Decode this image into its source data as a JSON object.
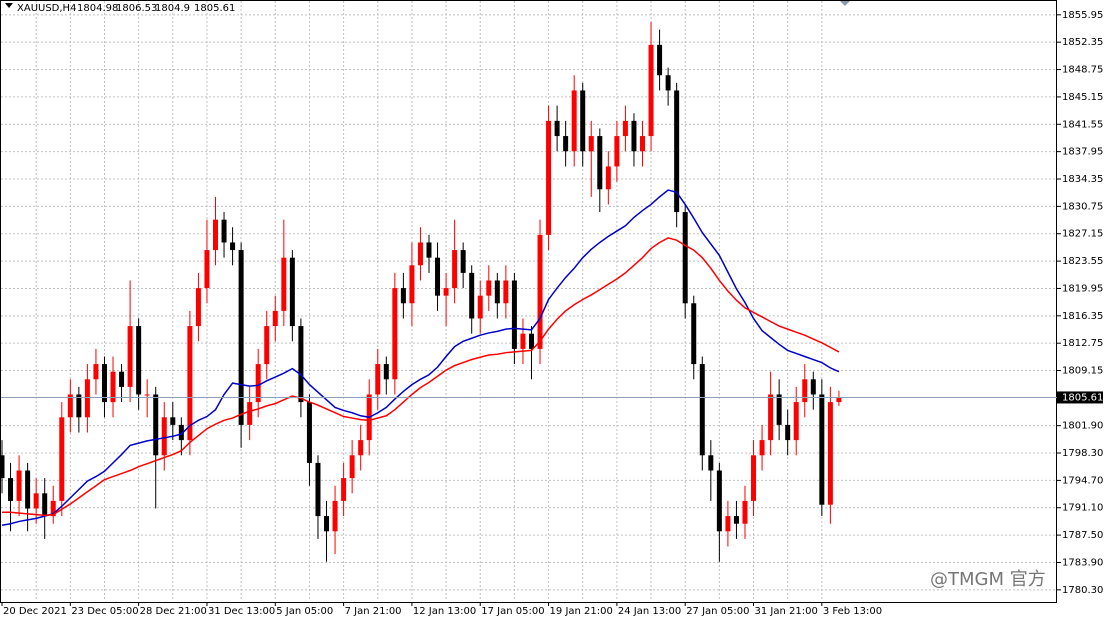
{
  "chart_data": {
    "type": "candlestick",
    "title": "XAUUSD,H4",
    "header_values": [
      1804.98,
      1806.53,
      1804.9,
      1805.61
    ],
    "categories": [
      "20 Dec 2021",
      null,
      null,
      null,
      null,
      null,
      null,
      null,
      "23 Dec 05:00",
      null,
      null,
      null,
      null,
      null,
      null,
      null,
      "28 Dec 21:00",
      null,
      null,
      null,
      null,
      null,
      null,
      null,
      "31 Dec 13:00",
      null,
      null,
      null,
      null,
      null,
      null,
      null,
      "5 Jan 05:00",
      null,
      null,
      null,
      null,
      null,
      null,
      null,
      "7 Jan 21:00",
      null,
      null,
      null,
      null,
      null,
      null,
      null,
      "12 Jan 13:00",
      null,
      null,
      null,
      null,
      null,
      null,
      null,
      "17 Jan 05:00",
      null,
      null,
      null,
      null,
      null,
      null,
      null,
      "19 Jan 21:00",
      null,
      null,
      null,
      null,
      null,
      null,
      null,
      "24 Jan 13:00",
      null,
      null,
      null,
      null,
      null,
      null,
      null,
      "27 Jan 05:00",
      null,
      null,
      null,
      null,
      null,
      null,
      null,
      "31 Jan 21:00",
      null,
      null,
      null,
      null,
      null,
      null,
      null,
      "3 Feb 13:00",
      null,
      null
    ],
    "open": [
      1798,
      1795,
      1792,
      1796,
      1791,
      1793,
      1790,
      1792,
      1803,
      1806,
      1803,
      1808,
      1810,
      1805,
      1809,
      1807,
      1815,
      1806,
      1806,
      1798,
      1803,
      1802,
      1800,
      1815,
      1820,
      1825,
      1829,
      1826,
      1825,
      1802,
      1805,
      1810,
      1815,
      1817,
      1824,
      1815,
      1805,
      1797,
      1790,
      1788,
      1792,
      1795,
      1798,
      1800,
      1806,
      1810,
      1808,
      1820,
      1818,
      1823,
      1826,
      1824,
      1819,
      1820,
      1825,
      1822,
      1816,
      1819,
      1821,
      1818,
      1821,
      1812,
      1814,
      1812,
      1827,
      1842,
      1840,
      1838,
      1846,
      1838,
      1840,
      1833,
      1836,
      1840,
      1842,
      1838,
      1840,
      1852,
      1848,
      1846,
      1830,
      1818,
      1810,
      1798,
      1796,
      1788,
      1790,
      1789,
      1792,
      1798,
      1800,
      1806,
      1802,
      1800,
      1805,
      1808,
      1806,
      1791.5,
      1805
    ],
    "high": [
      1800,
      1797,
      1798,
      1797,
      1795,
      1795,
      1794,
      1805,
      1808,
      1807,
      1810,
      1812,
      1811,
      1811,
      1810,
      1821,
      1816,
      1808,
      1807,
      1805,
      1805,
      1803,
      1817,
      1822,
      1829,
      1832,
      1830,
      1828,
      1826,
      1807,
      1812,
      1817,
      1819,
      1829,
      1825,
      1816,
      1806,
      1798,
      1792,
      1794,
      1797,
      1800,
      1802,
      1808,
      1812,
      1811,
      1822,
      1822,
      1826,
      1828,
      1827,
      1826,
      1822,
      1829,
      1826,
      1823,
      1821,
      1823,
      1822,
      1823,
      1822,
      1816,
      1815,
      1829,
      1844,
      1844,
      1842,
      1848,
      1847,
      1842,
      1841,
      1838,
      1842,
      1844,
      1843,
      1842,
      1855,
      1854,
      1849,
      1847,
      1831,
      1819,
      1811,
      1800,
      1797,
      1792,
      1792,
      1794,
      1800,
      1802,
      1809,
      1808,
      1804,
      1807,
      1810,
      1809,
      1808,
      1807,
      1806.5
    ],
    "low": [
      1793,
      1788,
      1790,
      1788,
      1789,
      1787,
      1789,
      1790,
      1801,
      1801,
      1801,
      1806,
      1803,
      1803,
      1805,
      1805,
      1804,
      1803,
      1791,
      1796,
      1800,
      1798,
      1798,
      1813,
      1818,
      1823,
      1824,
      1823,
      1799,
      1800,
      1803,
      1808,
      1813,
      1815,
      1813,
      1803,
      1794,
      1787,
      1784,
      1785,
      1790,
      1793,
      1796,
      1798,
      1804,
      1806,
      1806,
      1816,
      1815,
      1821,
      1822,
      1817,
      1815,
      1818,
      1820,
      1814,
      1814,
      1817,
      1816,
      1816,
      1810,
      1810,
      1808,
      1810,
      1825,
      1838,
      1836,
      1836,
      1836,
      1832,
      1830,
      1831,
      1834,
      1838,
      1836,
      1836,
      1838,
      1846,
      1844,
      1828,
      1816,
      1808,
      1796,
      1792,
      1784,
      1786,
      1787,
      1787,
      1790,
      1796,
      1798,
      1800,
      1798,
      1798,
      1803,
      1804,
      1790,
      1789,
      1804.5
    ],
    "close": [
      1795,
      1792,
      1796,
      1791,
      1793,
      1790,
      1792,
      1803,
      1806,
      1803,
      1808,
      1810,
      1805,
      1809,
      1807,
      1815,
      1806,
      1806,
      1798,
      1803,
      1802,
      1800,
      1815,
      1820,
      1825,
      1829,
      1826,
      1825,
      1802,
      1805,
      1810,
      1815,
      1817,
      1824,
      1815,
      1805,
      1797,
      1790,
      1788,
      1792,
      1795,
      1798,
      1800,
      1806,
      1810,
      1808,
      1820,
      1818,
      1823,
      1826,
      1824,
      1819,
      1820,
      1825,
      1822,
      1816,
      1819,
      1821,
      1818,
      1821,
      1812,
      1814,
      1812,
      1827,
      1842,
      1840,
      1838,
      1846,
      1838,
      1840,
      1833,
      1836,
      1840,
      1842,
      1838,
      1840,
      1852,
      1848,
      1846,
      1830,
      1818,
      1810,
      1798,
      1796,
      1788,
      1790,
      1789,
      1792,
      1798,
      1800,
      1806,
      1802,
      1800,
      1805,
      1808,
      1806,
      1791.5,
      1805,
      1805.61
    ],
    "up_color": "#ff0000",
    "down_color": "#000000",
    "series": [
      {
        "color": "#0000cc",
        "values": [
          1788.8,
          1789,
          1789.3,
          1789.5,
          1789.7,
          1790,
          1790.3,
          1791.3,
          1792.4,
          1793.5,
          1794.6,
          1795.2,
          1795.9,
          1797,
          1798.1,
          1799.3,
          1799.6,
          1799.9,
          1800.1,
          1800.3,
          1800.5,
          1800.8,
          1801.9,
          1802.6,
          1803.1,
          1804,
          1806,
          1807.5,
          1807.3,
          1807.1,
          1807.2,
          1807.8,
          1808.3,
          1808.8,
          1809.4,
          1808.6,
          1807.3,
          1806.3,
          1805.3,
          1804.3,
          1803.9,
          1803.6,
          1803.2,
          1803,
          1803.6,
          1804.3,
          1805.4,
          1806.4,
          1807.3,
          1808,
          1808.6,
          1809.6,
          1811,
          1812.3,
          1813,
          1813.4,
          1813.8,
          1814.1,
          1814.3,
          1814.6,
          1814.7,
          1814.6,
          1814.5,
          1816,
          1818.5,
          1820,
          1821.4,
          1822.6,
          1824,
          1825.1,
          1826,
          1826.8,
          1827.5,
          1828.2,
          1829.3,
          1830.2,
          1831,
          1832,
          1832.9,
          1832.6,
          1831,
          1829.2,
          1827.3,
          1825.8,
          1824.3,
          1822.1,
          1819.9,
          1818.1,
          1816,
          1814.4,
          1813.5,
          1812.6,
          1811.8,
          1811.4,
          1811,
          1810.6,
          1810.2,
          1809.5,
          1809
        ]
      },
      {
        "color": "#ff0000",
        "values": [
          1790.5,
          1790.5,
          1790.4,
          1790.3,
          1790.2,
          1790.1,
          1790.2,
          1790.9,
          1791.6,
          1792.4,
          1793.2,
          1794,
          1794.8,
          1795.2,
          1795.6,
          1796,
          1796.5,
          1796.9,
          1797.3,
          1797.7,
          1798.1,
          1798.6,
          1799.7,
          1800.6,
          1801.5,
          1802.1,
          1802.6,
          1802.9,
          1803.4,
          1803.8,
          1804.1,
          1804.5,
          1804.8,
          1805.3,
          1805.8,
          1805.5,
          1805,
          1804.6,
          1804.1,
          1803.6,
          1803.1,
          1802.9,
          1802.7,
          1802.6,
          1802.9,
          1803.2,
          1804,
          1805,
          1806,
          1806.9,
          1807.6,
          1808.4,
          1809.2,
          1809.8,
          1810.2,
          1810.6,
          1810.9,
          1811.2,
          1811.3,
          1811.5,
          1811.6,
          1811.7,
          1811.8,
          1813,
          1814.6,
          1815.9,
          1817,
          1817.8,
          1818.5,
          1819.1,
          1819.8,
          1820.5,
          1821.2,
          1822,
          1823,
          1824,
          1825.2,
          1826,
          1826.6,
          1826.3,
          1825.6,
          1825,
          1824,
          1822.6,
          1821,
          1819.6,
          1818.4,
          1817.4,
          1816.8,
          1816.2,
          1815.6,
          1815,
          1814.6,
          1814.2,
          1813.8,
          1813.3,
          1812.8,
          1812.2,
          1811.6
        ]
      }
    ],
    "current_price": 1805.61,
    "ylim": [
      1778.7,
      1857.9
    ],
    "yticks": [
      1855.95,
      1852.35,
      1848.75,
      1845.15,
      1841.55,
      1837.95,
      1834.35,
      1830.75,
      1827.15,
      1823.55,
      1819.95,
      1816.35,
      1812.75,
      1809.15,
      {
        "value": 1801.9,
        "label": "1801.90"
      },
      {
        "value": 1798.3,
        "label": "1798.30"
      },
      {
        "value": 1794.7,
        "label": "1794.70"
      },
      {
        "value": 1791.1,
        "label": "1791.10"
      },
      {
        "value": 1787.5,
        "label": "1787.50"
      },
      {
        "value": 1783.9,
        "label": "1783.90"
      },
      {
        "value": 1780.3,
        "label": "1780.30"
      }
    ],
    "grid": true,
    "watermark": "@TMGM 官方"
  }
}
